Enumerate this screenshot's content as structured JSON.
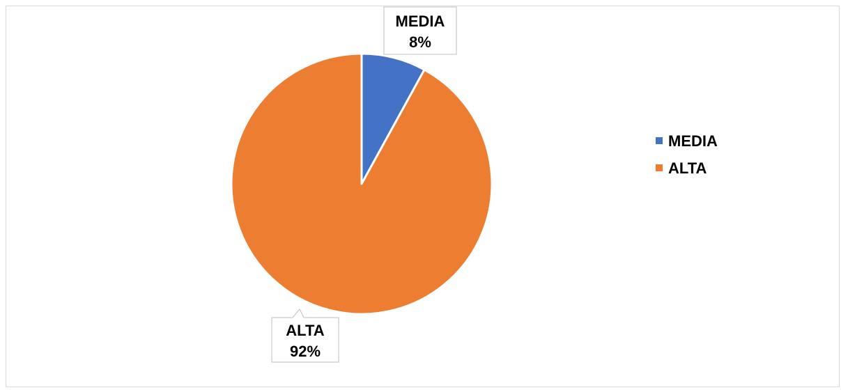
{
  "chart_data": {
    "type": "pie",
    "title": "",
    "slices": [
      {
        "name": "MEDIA",
        "value": 8,
        "label": "8%",
        "color": "#4472C4"
      },
      {
        "name": "ALTA",
        "value": 92,
        "label": "92%",
        "color": "#ED7D31"
      }
    ],
    "legend": {
      "position": "right",
      "items": [
        "MEDIA",
        "ALTA"
      ]
    },
    "data_labels": {
      "show_category": true,
      "show_percent": true,
      "style": "callout"
    }
  }
}
